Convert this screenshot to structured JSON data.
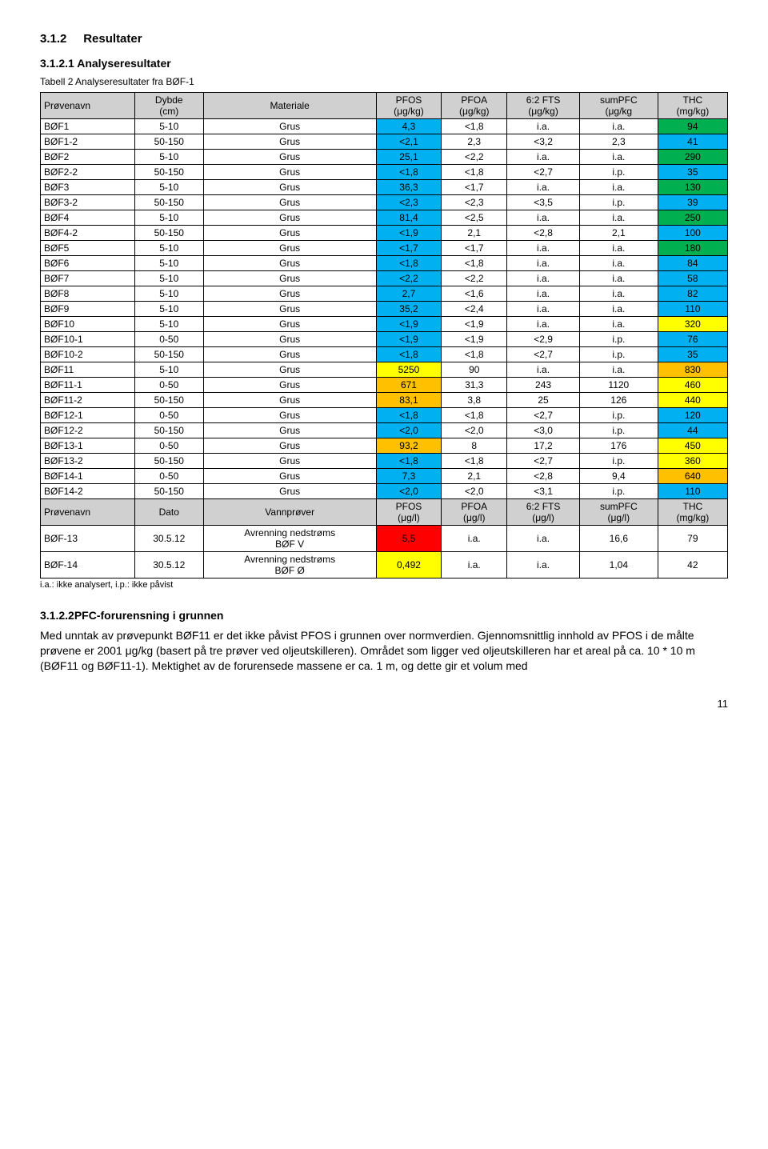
{
  "section_num": "3.1.2",
  "section_title": "Resultater",
  "subsection_num": "3.1.2.1",
  "subsection_title": "Analyseresultater",
  "table_caption": "Tabell 2 Analyseresultater fra BØF-1",
  "colors": {
    "header_bg": "#d0d0d0",
    "green": "#00b050",
    "blue": "#00b0f0",
    "yellow": "#ffff00",
    "orange": "#ffc000",
    "red": "#ff0000",
    "white": "#ffffff"
  },
  "header1": {
    "c0": "Prøvenavn",
    "c1": "Dybde\n(cm)",
    "c2": "Materiale",
    "c3": "PFOS\n(μg/kg)",
    "c4": "PFOA\n(μg/kg)",
    "c5": "6:2 FTS\n(μg/kg)",
    "c6": "sumPFC\n(μg/kg",
    "c7": "THC\n(mg/kg)"
  },
  "rows1": [
    {
      "c0": "BØF1",
      "c1": "5-10",
      "c2": "Grus",
      "c3": "4,3",
      "c4": "<1,8",
      "c5": "i.a.",
      "c6": "i.a.",
      "c7": "94",
      "bg3": "blue",
      "bg7": "green"
    },
    {
      "c0": "BØF1-2",
      "c1": "50-150",
      "c2": "Grus",
      "c3": "<2,1",
      "c4": "2,3",
      "c5": "<3,2",
      "c6": "2,3",
      "c7": "41",
      "bg3": "blue",
      "bg7": "blue"
    },
    {
      "c0": "BØF2",
      "c1": "5-10",
      "c2": "Grus",
      "c3": "25,1",
      "c4": "<2,2",
      "c5": "i.a.",
      "c6": "i.a.",
      "c7": "290",
      "bg3": "blue",
      "bg7": "green"
    },
    {
      "c0": "BØF2-2",
      "c1": "50-150",
      "c2": "Grus",
      "c3": "<1,8",
      "c4": "<1,8",
      "c5": "<2,7",
      "c6": "i.p.",
      "c7": "35",
      "bg3": "blue",
      "bg7": "blue"
    },
    {
      "c0": "BØF3",
      "c1": "5-10",
      "c2": "Grus",
      "c3": "36,3",
      "c4": "<1,7",
      "c5": "i.a.",
      "c6": "i.a.",
      "c7": "130",
      "bg3": "blue",
      "bg7": "green"
    },
    {
      "c0": "BØF3-2",
      "c1": "50-150",
      "c2": "Grus",
      "c3": "<2,3",
      "c4": "<2,3",
      "c5": "<3,5",
      "c6": "i.p.",
      "c7": "39",
      "bg3": "blue",
      "bg7": "blue"
    },
    {
      "c0": "BØF4",
      "c1": "5-10",
      "c2": "Grus",
      "c3": "81,4",
      "c4": "<2,5",
      "c5": "i.a.",
      "c6": "i.a.",
      "c7": "250",
      "bg3": "blue",
      "bg7": "green"
    },
    {
      "c0": "BØF4-2",
      "c1": "50-150",
      "c2": "Grus",
      "c3": "<1,9",
      "c4": "2,1",
      "c5": "<2,8",
      "c6": "2,1",
      "c7": "100",
      "bg3": "blue",
      "bg7": "blue"
    },
    {
      "c0": "BØF5",
      "c1": "5-10",
      "c2": "Grus",
      "c3": "<1,7",
      "c4": "<1,7",
      "c5": "i.a.",
      "c6": "i.a.",
      "c7": "180",
      "bg3": "blue",
      "bg7": "green"
    },
    {
      "c0": "BØF6",
      "c1": "5-10",
      "c2": "Grus",
      "c3": "<1,8",
      "c4": "<1,8",
      "c5": "i.a.",
      "c6": "i.a.",
      "c7": "84",
      "bg3": "blue",
      "bg7": "blue"
    },
    {
      "c0": "BØF7",
      "c1": "5-10",
      "c2": "Grus",
      "c3": "<2,2",
      "c4": "<2,2",
      "c5": "i.a.",
      "c6": "i.a.",
      "c7": "58",
      "bg3": "blue",
      "bg7": "blue"
    },
    {
      "c0": "BØF8",
      "c1": "5-10",
      "c2": "Grus",
      "c3": "2,7",
      "c4": "<1,6",
      "c5": "i.a.",
      "c6": "i.a.",
      "c7": "82",
      "bg3": "blue",
      "bg7": "blue"
    },
    {
      "c0": "BØF9",
      "c1": "5-10",
      "c2": "Grus",
      "c3": "35,2",
      "c4": "<2,4",
      "c5": "i.a.",
      "c6": "i.a.",
      "c7": "110",
      "bg3": "blue",
      "bg7": "blue"
    },
    {
      "c0": "BØF10",
      "c1": "5-10",
      "c2": "Grus",
      "c3": "<1,9",
      "c4": "<1,9",
      "c5": "i.a.",
      "c6": "i.a.",
      "c7": "320",
      "bg3": "blue",
      "bg7": "yellow"
    },
    {
      "c0": "BØF10-1",
      "c1": "0-50",
      "c2": "Grus",
      "c3": "<1,9",
      "c4": "<1,9",
      "c5": "<2,9",
      "c6": "i.p.",
      "c7": "76",
      "bg3": "blue",
      "bg7": "blue"
    },
    {
      "c0": "BØF10-2",
      "c1": "50-150",
      "c2": "Grus",
      "c3": "<1,8",
      "c4": "<1,8",
      "c5": "<2,7",
      "c6": "i.p.",
      "c7": "35",
      "bg3": "blue",
      "bg7": "blue"
    },
    {
      "c0": "BØF11",
      "c1": "5-10",
      "c2": "Grus",
      "c3": "5250",
      "c4": "90",
      "c5": "i.a.",
      "c6": "i.a.",
      "c7": "830",
      "bg3": "yellow",
      "bg7": "orange"
    },
    {
      "c0": "BØF11-1",
      "c1": "0-50",
      "c2": "Grus",
      "c3": "671",
      "c4": "31,3",
      "c5": "243",
      "c6": "1120",
      "c7": "460",
      "bg3": "orange",
      "bg7": "yellow"
    },
    {
      "c0": "BØF11-2",
      "c1": "50-150",
      "c2": "Grus",
      "c3": "83,1",
      "c4": "3,8",
      "c5": "25",
      "c6": "126",
      "c7": "440",
      "bg3": "orange",
      "bg7": "yellow"
    },
    {
      "c0": "BØF12-1",
      "c1": "0-50",
      "c2": "Grus",
      "c3": "<1,8",
      "c4": "<1,8",
      "c5": "<2,7",
      "c6": "i.p.",
      "c7": "120",
      "bg3": "blue",
      "bg7": "blue"
    },
    {
      "c0": "BØF12-2",
      "c1": "50-150",
      "c2": "Grus",
      "c3": "<2,0",
      "c4": "<2,0",
      "c5": "<3,0",
      "c6": "i.p.",
      "c7": "44",
      "bg3": "blue",
      "bg7": "blue"
    },
    {
      "c0": "BØF13-1",
      "c1": "0-50",
      "c2": "Grus",
      "c3": "93,2",
      "c4": "8",
      "c5": "17,2",
      "c6": "176",
      "c7": "450",
      "bg3": "orange",
      "bg7": "yellow"
    },
    {
      "c0": "BØF13-2",
      "c1": "50-150",
      "c2": "Grus",
      "c3": "<1,8",
      "c4": "<1,8",
      "c5": "<2,7",
      "c6": "i.p.",
      "c7": "360",
      "bg3": "blue",
      "bg7": "yellow"
    },
    {
      "c0": "BØF14-1",
      "c1": "0-50",
      "c2": "Grus",
      "c3": "7,3",
      "c4": "2,1",
      "c5": "<2,8",
      "c6": "9,4",
      "c7": "640",
      "bg3": "blue",
      "bg7": "orange"
    },
    {
      "c0": "BØF14-2",
      "c1": "50-150",
      "c2": "Grus",
      "c3": "<2,0",
      "c4": "<2,0",
      "c5": "<3,1",
      "c6": "i.p.",
      "c7": "110",
      "bg3": "blue",
      "bg7": "blue"
    }
  ],
  "header2": {
    "c0": "Prøvenavn",
    "c1": "Dato",
    "c2": "Vannprøver",
    "c3": "PFOS\n(μg/l)",
    "c4": "PFOA\n(μg/l)",
    "c5": "6:2 FTS\n(μg/l)",
    "c6": "sumPFC\n(μg/l)",
    "c7": "THC\n(mg/kg)"
  },
  "rows2": [
    {
      "c0": "BØF-13",
      "c1": "30.5.12",
      "c2": "Avrenning nedstrøms\nBØF V",
      "c3": "5,5",
      "c4": "i.a.",
      "c5": "i.a.",
      "c6": "16,6",
      "c7": "79",
      "bg3": "red"
    },
    {
      "c0": "BØF-14",
      "c1": "30.5.12",
      "c2": "Avrenning nedstrøms\nBØF Ø",
      "c3": "0,492",
      "c4": "i.a.",
      "c5": "i.a.",
      "c6": "1,04",
      "c7": "42",
      "bg3": "yellow"
    }
  ],
  "footnote": "i.a.: ikke analysert, i.p.: ikke påvist",
  "section2_num": "3.1.2.2",
  "section2_title": "PFC-forurensning i grunnen",
  "paragraph": "Med unntak av prøvepunkt BØF11 er det ikke påvist PFOS i grunnen over normverdien. Gjennomsnittlig innhold av PFOS i de målte prøvene er 2001 μg/kg (basert på tre prøver ved oljeutskilleren). Området som ligger ved oljeutskilleren har et areal på ca. 10 * 10 m (BØF11 og BØF11-1). Mektighet av de forurensede massene er ca. 1 m, og dette gir et volum med",
  "page_number": "11"
}
